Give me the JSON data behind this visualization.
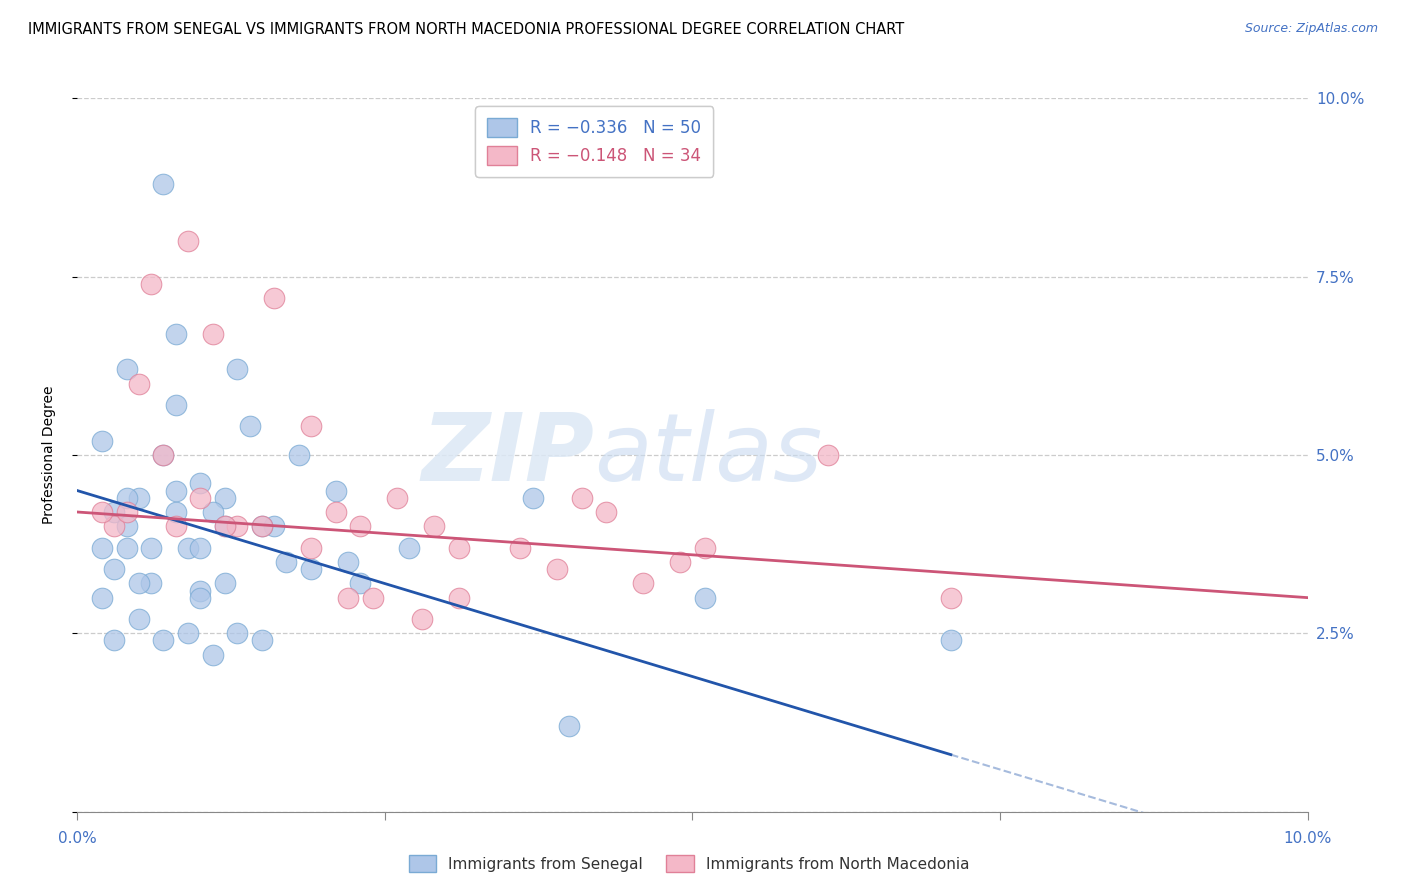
{
  "title": "IMMIGRANTS FROM SENEGAL VS IMMIGRANTS FROM NORTH MACEDONIA PROFESSIONAL DEGREE CORRELATION CHART",
  "source": "Source: ZipAtlas.com",
  "ylabel": "Professional Degree",
  "y_ticks": [
    0.0,
    0.025,
    0.05,
    0.075,
    0.1
  ],
  "y_tick_labels": [
    "",
    "2.5%",
    "5.0%",
    "7.5%",
    "10.0%"
  ],
  "x_lim": [
    0.0,
    0.1
  ],
  "y_lim": [
    0.0,
    0.1
  ],
  "watermark_zip": "ZIP",
  "watermark_atlas": "atlas",
  "senegal_color": "#aec6e8",
  "senegal_edge": "#7aaad4",
  "macedonia_color": "#f4b8c8",
  "macedonia_edge": "#e08098",
  "senegal_line_color": "#2255aa",
  "macedonia_line_color": "#cc5577",
  "title_fontsize": 10.5,
  "source_fontsize": 9,
  "axis_label_fontsize": 10,
  "tick_fontsize": 11,
  "legend_fontsize": 12,
  "senegal_R": -0.336,
  "senegal_N": 50,
  "macedonia_R": -0.148,
  "macedonia_N": 34,
  "senegal_x": [
    0.007,
    0.01,
    0.004,
    0.008,
    0.003,
    0.002,
    0.004,
    0.005,
    0.006,
    0.007,
    0.008,
    0.01,
    0.012,
    0.014,
    0.016,
    0.013,
    0.018,
    0.009,
    0.011,
    0.015,
    0.017,
    0.019,
    0.021,
    0.023,
    0.004,
    0.006,
    0.008,
    0.01,
    0.012,
    0.002,
    0.003,
    0.005,
    0.007,
    0.009,
    0.011,
    0.013,
    0.015,
    0.002,
    0.003,
    0.004,
    0.005,
    0.008,
    0.01,
    0.012,
    0.022,
    0.027,
    0.037,
    0.071,
    0.051,
    0.04
  ],
  "senegal_y": [
    0.088,
    0.046,
    0.062,
    0.067,
    0.042,
    0.052,
    0.04,
    0.044,
    0.037,
    0.05,
    0.057,
    0.031,
    0.044,
    0.054,
    0.04,
    0.062,
    0.05,
    0.037,
    0.042,
    0.04,
    0.035,
    0.034,
    0.045,
    0.032,
    0.044,
    0.032,
    0.042,
    0.03,
    0.032,
    0.03,
    0.034,
    0.027,
    0.024,
    0.025,
    0.022,
    0.025,
    0.024,
    0.037,
    0.024,
    0.037,
    0.032,
    0.045,
    0.037,
    0.04,
    0.035,
    0.037,
    0.044,
    0.024,
    0.03,
    0.012
  ],
  "macedonia_x": [
    0.003,
    0.004,
    0.006,
    0.009,
    0.011,
    0.013,
    0.016,
    0.019,
    0.021,
    0.023,
    0.026,
    0.029,
    0.031,
    0.036,
    0.039,
    0.041,
    0.043,
    0.046,
    0.051,
    0.022,
    0.002,
    0.005,
    0.008,
    0.01,
    0.015,
    0.019,
    0.024,
    0.031,
    0.049,
    0.071,
    0.007,
    0.012,
    0.028,
    0.061
  ],
  "macedonia_y": [
    0.04,
    0.042,
    0.074,
    0.08,
    0.067,
    0.04,
    0.072,
    0.054,
    0.042,
    0.04,
    0.044,
    0.04,
    0.037,
    0.037,
    0.034,
    0.044,
    0.042,
    0.032,
    0.037,
    0.03,
    0.042,
    0.06,
    0.04,
    0.044,
    0.04,
    0.037,
    0.03,
    0.03,
    0.035,
    0.03,
    0.05,
    0.04,
    0.027,
    0.05
  ],
  "senegal_line_x0": 0.0,
  "senegal_line_y0": 0.045,
  "senegal_line_x1": 0.071,
  "senegal_line_y1": 0.008,
  "macedonia_line_x0": 0.0,
  "macedonia_line_y0": 0.042,
  "macedonia_line_x1": 0.1,
  "macedonia_line_y1": 0.03
}
